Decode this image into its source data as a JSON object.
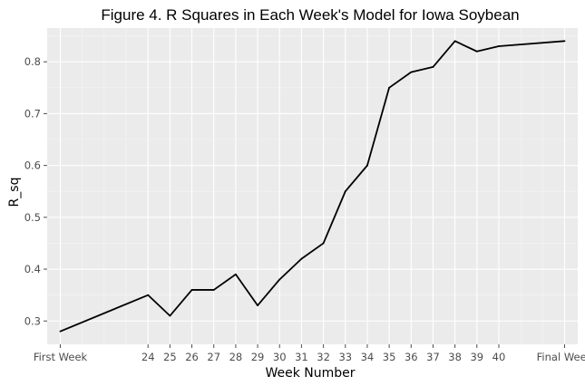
{
  "chart_data": {
    "type": "line",
    "title": "Figure 4. R Squares in Each Week's Model for Iowa Soybean",
    "xlabel": "Week Number",
    "ylabel": "R_sq",
    "categories": [
      "First Week",
      "24",
      "25",
      "26",
      "27",
      "28",
      "29",
      "30",
      "31",
      "32",
      "33",
      "34",
      "35",
      "36",
      "37",
      "38",
      "39",
      "40",
      "Final Week"
    ],
    "series": [
      {
        "values": [
          0.28,
          0.35,
          0.31,
          0.36,
          0.36,
          0.39,
          0.33,
          0.38,
          0.42,
          0.45,
          0.55,
          0.6,
          0.75,
          0.78,
          0.79,
          0.84,
          0.82,
          0.83,
          0.84
        ]
      }
    ],
    "x_positions": [
      20,
      24,
      25,
      26,
      27,
      28,
      29,
      30,
      31,
      32,
      33,
      34,
      35,
      36,
      37,
      38,
      39,
      40,
      43
    ],
    "ylim": [
      0.255,
      0.865
    ],
    "yticks": [
      0.3,
      0.4,
      0.5,
      0.6,
      0.7,
      0.8
    ],
    "ytick_labels": [
      "0.3",
      "0.4",
      "0.5",
      "0.6",
      "0.7",
      "0.8"
    ],
    "grid": true,
    "legend": "none",
    "colors": {
      "panel": "#ebebeb",
      "grid_major": "#ffffff",
      "grid_minor": "#f5f5f5",
      "line": "#000000",
      "tick": "#4d4d4d"
    }
  }
}
